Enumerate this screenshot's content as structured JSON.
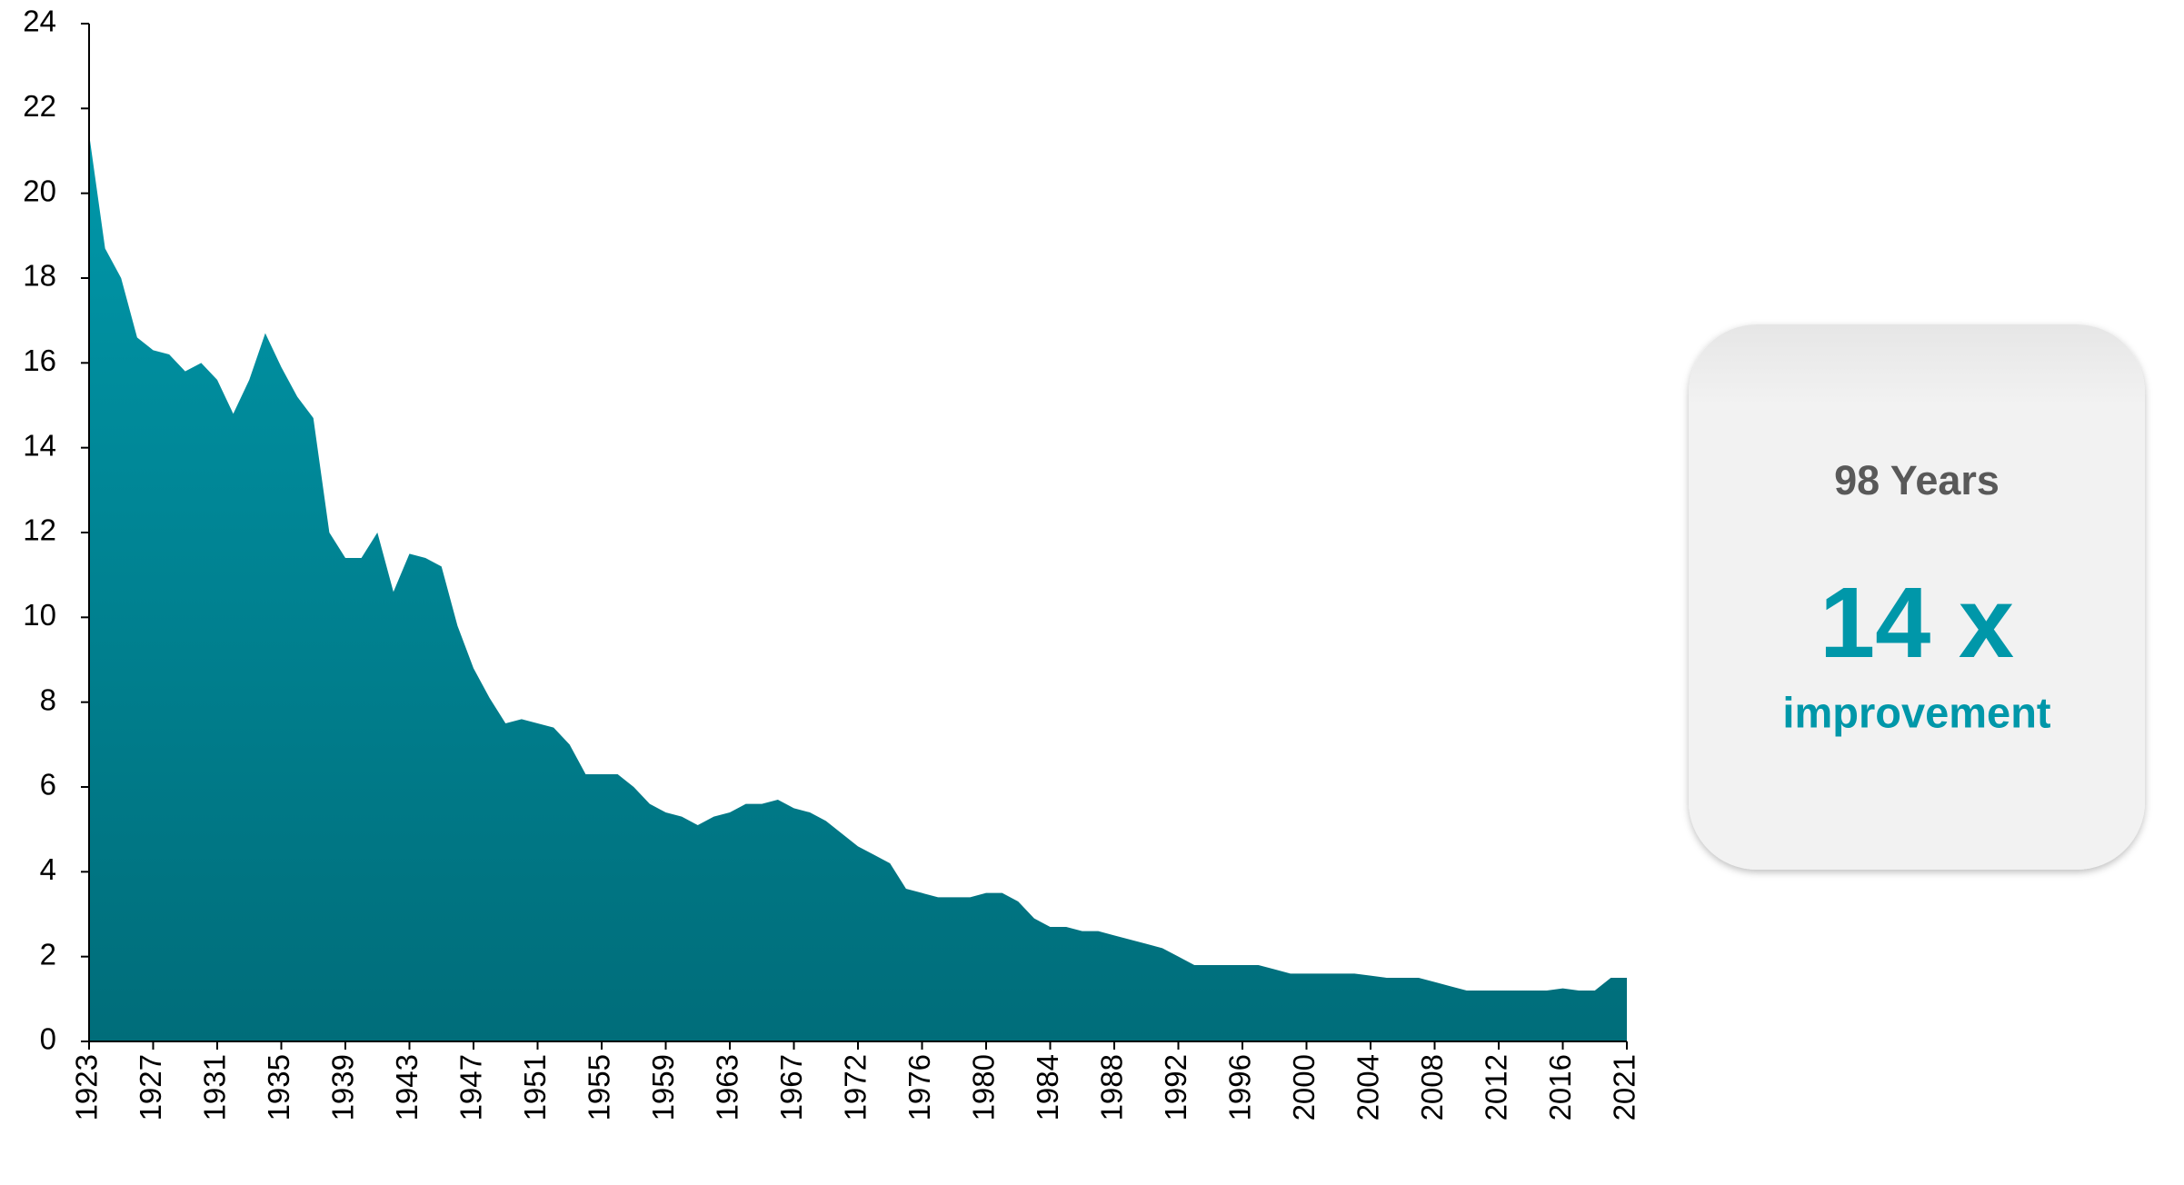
{
  "chart_data": {
    "type": "area",
    "categories": [
      "1923",
      null,
      null,
      null,
      "1927",
      null,
      null,
      null,
      "1931",
      null,
      null,
      null,
      "1935",
      null,
      null,
      null,
      "1939",
      null,
      null,
      null,
      "1943",
      null,
      null,
      null,
      "1947",
      null,
      null,
      null,
      "1951",
      null,
      null,
      null,
      "1955",
      null,
      null,
      null,
      "1959",
      null,
      null,
      null,
      "1963",
      null,
      null,
      null,
      "1967",
      null,
      null,
      null,
      "1972",
      null,
      null,
      null,
      "1976",
      null,
      null,
      null,
      "1980",
      null,
      null,
      null,
      "1984",
      null,
      null,
      null,
      "1988",
      null,
      null,
      null,
      "1992",
      null,
      null,
      null,
      "1996",
      null,
      null,
      null,
      "2000",
      null,
      null,
      null,
      "2004",
      null,
      null,
      null,
      "2008",
      null,
      null,
      null,
      "2012",
      null,
      null,
      null,
      "2016",
      null,
      null,
      null,
      "2021"
    ],
    "values": [
      21.4,
      18.7,
      18.0,
      16.6,
      16.3,
      16.2,
      15.8,
      16.0,
      15.6,
      14.8,
      15.6,
      16.7,
      15.9,
      15.2,
      14.7,
      12.0,
      11.4,
      11.4,
      12.0,
      10.6,
      11.5,
      11.4,
      11.2,
      9.8,
      8.8,
      8.1,
      7.5,
      7.6,
      7.5,
      7.4,
      7.0,
      6.3,
      6.3,
      6.3,
      6.0,
      5.6,
      5.4,
      5.3,
      5.1,
      5.3,
      5.4,
      5.6,
      5.6,
      5.7,
      5.5,
      5.4,
      5.2,
      4.9,
      4.6,
      4.4,
      4.2,
      3.6,
      3.5,
      3.4,
      3.4,
      3.4,
      3.5,
      3.5,
      3.3,
      2.9,
      2.7,
      2.7,
      2.6,
      2.6,
      2.5,
      2.4,
      2.3,
      2.2,
      2.0,
      1.8,
      1.8,
      1.8,
      1.8,
      1.8,
      1.7,
      1.6,
      1.6,
      1.6,
      1.6,
      1.6,
      1.55,
      1.5,
      1.5,
      1.5,
      1.4,
      1.3,
      1.2,
      1.2,
      1.2,
      1.2,
      1.2,
      1.2,
      1.25,
      1.2,
      1.2,
      1.5,
      1.5
    ],
    "color": "#0097a9",
    "ylim": [
      0,
      24
    ],
    "yticks": [
      0,
      2,
      4,
      6,
      8,
      10,
      12,
      14,
      16,
      18,
      20,
      22,
      24
    ],
    "annotation": {
      "title": "98 Years",
      "value": "14 x",
      "label": "improvement"
    }
  }
}
